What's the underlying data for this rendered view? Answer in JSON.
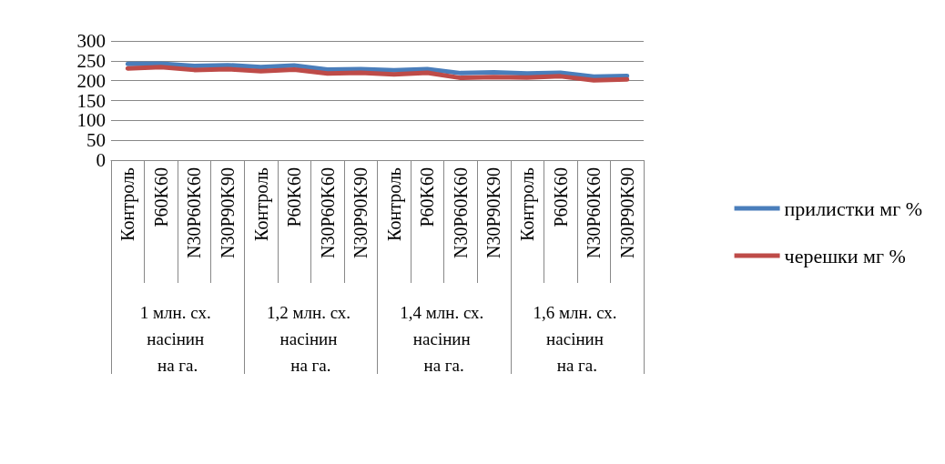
{
  "chart_data": {
    "type": "line",
    "categories": [
      "Контроль",
      "P60K60",
      "N30P60K60",
      "N30P90K90",
      "Контроль",
      "P60K60",
      "N30P60K60",
      "N30P90K90",
      "Контроль",
      "P60K60",
      "N30P60K60",
      "N30P90K90",
      "Контроль",
      "P60K60",
      "N30P60K60",
      "N30P90K90"
    ],
    "series": [
      {
        "name": "прилистки мг %",
        "color": "#4a7ebb",
        "values": [
          242,
          243,
          237,
          239,
          234,
          238,
          228,
          229,
          226,
          229,
          219,
          221,
          218,
          220,
          210,
          212
        ]
      },
      {
        "name": "черешки мг %",
        "color": "#be4b48",
        "values": [
          231,
          234,
          227,
          229,
          224,
          228,
          218,
          220,
          216,
          220,
          207,
          209,
          208,
          211,
          201,
          203
        ]
      }
    ],
    "ylim": [
      0,
      300
    ],
    "yticks": [
      0,
      50,
      100,
      150,
      200,
      250,
      300
    ],
    "grid": "y",
    "legend": "right",
    "marker": "none",
    "line_style": "solid",
    "annotations": [
      "1 млн. сх. насінин на га.",
      "1,2 млн. сх. насінин на га.",
      "1,4 млн. сх. насінин на га.",
      "1,6 млн. сх. насінин на га."
    ]
  }
}
